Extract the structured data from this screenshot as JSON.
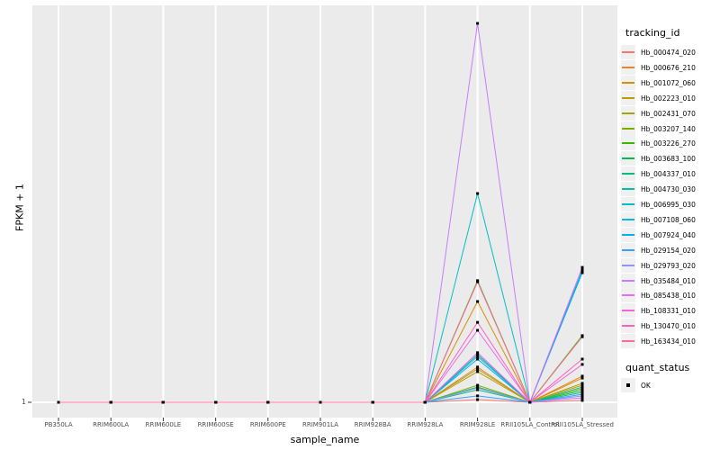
{
  "chart_data": {
    "type": "line",
    "title": "",
    "xlabel": "sample_name",
    "ylabel": "FPKM + 1",
    "categories": [
      "PB350LA",
      "RRIM600LA",
      "RRIM600LE",
      "RRIM600SE",
      "RRIM600PE",
      "RRIM901LA",
      "RRIM928BA",
      "RRIM928LA",
      "RRIM928LE",
      "RRII105LA_Control",
      "RRII105LA_Stressed"
    ],
    "y_ticks": [
      "1"
    ],
    "y_axis_note": "log-style axis, only the value 1 is labeled; series values below are relative heights (0 = FPKM+1 = 1 baseline, 1 = tallest peak)",
    "grid": "major white gridlines on gray panel",
    "legend_position": "right",
    "panel_bg": "#EBEBEB",
    "grid_color": "#FFFFFF",
    "axis_text_color": "#4D4D4D",
    "point_color": "#000000",
    "legend": {
      "title": "tracking_id"
    },
    "quant_legend": {
      "title": "quant_status",
      "items": [
        {
          "label": "OK"
        }
      ]
    },
    "series": [
      {
        "name": "Hb_000474_020",
        "color": "#F8766D",
        "values": [
          0,
          0,
          0,
          0,
          0,
          0,
          0,
          0,
          0.007,
          0,
          0.005
        ]
      },
      {
        "name": "Hb_000676_210",
        "color": "#EA8331",
        "values": [
          0,
          0,
          0,
          0,
          0,
          0,
          0,
          0,
          0.093,
          0,
          0.064
        ]
      },
      {
        "name": "Hb_001072_060",
        "color": "#D89000",
        "values": [
          0,
          0,
          0,
          0,
          0,
          0,
          0,
          0,
          0.266,
          0,
          0.069
        ]
      },
      {
        "name": "Hb_002223_010",
        "color": "#C09B00",
        "values": [
          0,
          0,
          0,
          0,
          0,
          0,
          0,
          0,
          0.081,
          0,
          0.045
        ]
      },
      {
        "name": "Hb_002431_070",
        "color": "#A3A500",
        "values": [
          0,
          0,
          0,
          0,
          0,
          0,
          0,
          0,
          0.088,
          0,
          0.05
        ]
      },
      {
        "name": "Hb_003207_140",
        "color": "#7CAE00",
        "values": [
          0,
          0,
          0,
          0,
          0,
          0,
          0,
          0,
          0.045,
          0,
          0.036
        ]
      },
      {
        "name": "Hb_003226_270",
        "color": "#39B600",
        "values": [
          0,
          0,
          0,
          0,
          0,
          0,
          0,
          0,
          0.321,
          0,
          0.176
        ]
      },
      {
        "name": "Hb_003683_100",
        "color": "#00BB4E",
        "values": [
          0,
          0,
          0,
          0,
          0,
          0,
          0,
          0,
          0.04,
          0,
          0.031
        ]
      },
      {
        "name": "Hb_004337_010",
        "color": "#00BF7D",
        "values": [
          0,
          0,
          0,
          0,
          0,
          0,
          0,
          0,
          0.033,
          0,
          0.026
        ]
      },
      {
        "name": "Hb_004730_030",
        "color": "#00C1A3",
        "values": [
          0,
          0,
          0,
          0,
          0,
          0,
          0,
          0,
          0.121,
          0,
          0.04
        ]
      },
      {
        "name": "Hb_006995_030",
        "color": "#00BFC4",
        "values": [
          0,
          0,
          0,
          0,
          0,
          0,
          0,
          0,
          0.551,
          0,
          0.349
        ]
      },
      {
        "name": "Hb_007108_060",
        "color": "#00BAE0",
        "values": [
          0,
          0,
          0,
          0,
          0,
          0,
          0,
          0,
          0.126,
          0,
          0.344
        ]
      },
      {
        "name": "Hb_007924_040",
        "color": "#00B0F6",
        "values": [
          0,
          0,
          0,
          0,
          0,
          0,
          0,
          0,
          0.114,
          0,
          0.342
        ]
      },
      {
        "name": "Hb_029154_020",
        "color": "#35A2FF",
        "values": [
          0,
          0,
          0,
          0,
          0,
          0,
          0,
          0,
          0.017,
          0,
          0.021
        ]
      },
      {
        "name": "Hb_029793_020",
        "color": "#9590FF",
        "values": [
          0,
          0,
          0,
          0,
          0,
          0,
          0,
          0,
          0.038,
          0,
          0.017
        ]
      },
      {
        "name": "Hb_035484_010",
        "color": "#C77CFF",
        "values": [
          0,
          0,
          0,
          0,
          0,
          0,
          0,
          0,
          1.0,
          0,
          0.012
        ]
      },
      {
        "name": "Hb_085438_010",
        "color": "#E76BF3",
        "values": [
          0,
          0,
          0,
          0,
          0,
          0,
          0,
          0,
          0.19,
          0,
          0.356
        ]
      },
      {
        "name": "Hb_108331_010",
        "color": "#FA62DB",
        "values": [
          0,
          0,
          0,
          0,
          0,
          0,
          0,
          0,
          0.131,
          0,
          0.1
        ]
      },
      {
        "name": "Hb_130470_010",
        "color": "#FF62BC",
        "values": [
          0,
          0,
          0,
          0,
          0,
          0,
          0,
          0,
          0.211,
          0,
          0.114
        ]
      },
      {
        "name": "Hb_163434_010",
        "color": "#FF6A98",
        "values": [
          0,
          0,
          0,
          0,
          0,
          0,
          0,
          0,
          0.318,
          0,
          0.173
        ]
      }
    ]
  }
}
